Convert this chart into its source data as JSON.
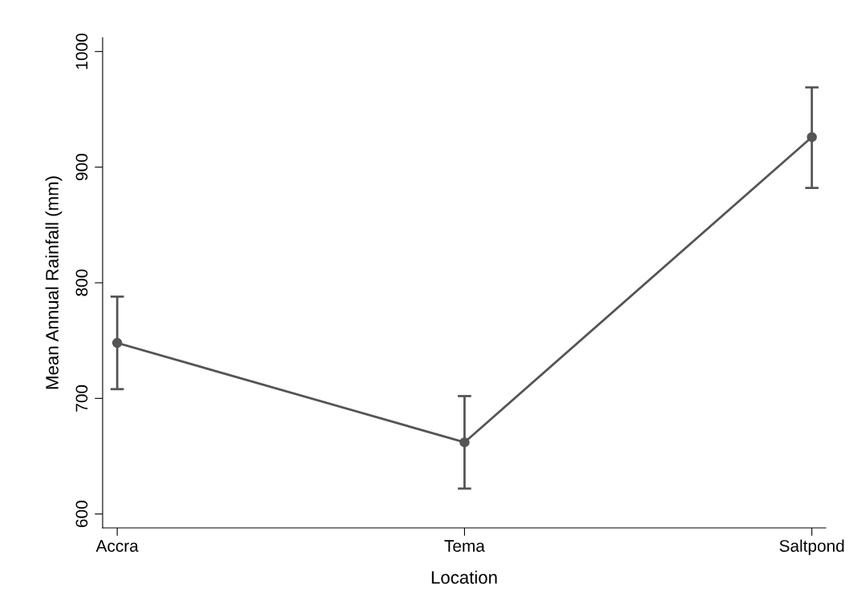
{
  "chart_data": {
    "type": "line",
    "xlabel": "Location",
    "ylabel": "Mean Annual Rainfall (mm)",
    "categories": [
      "Accra",
      "Tema",
      "Saltpond"
    ],
    "series": [
      {
        "color": "#555555",
        "values": [
          748,
          662,
          926
        ],
        "errors": [
          [
            708,
            788
          ],
          [
            622,
            702
          ],
          [
            882,
            969
          ]
        ]
      }
    ],
    "ylim": [
      588,
      1012
    ],
    "yticks": [
      600,
      700,
      800,
      900,
      1000
    ],
    "grid": false,
    "legend": false,
    "marker": "circle",
    "line_style": "solid"
  }
}
